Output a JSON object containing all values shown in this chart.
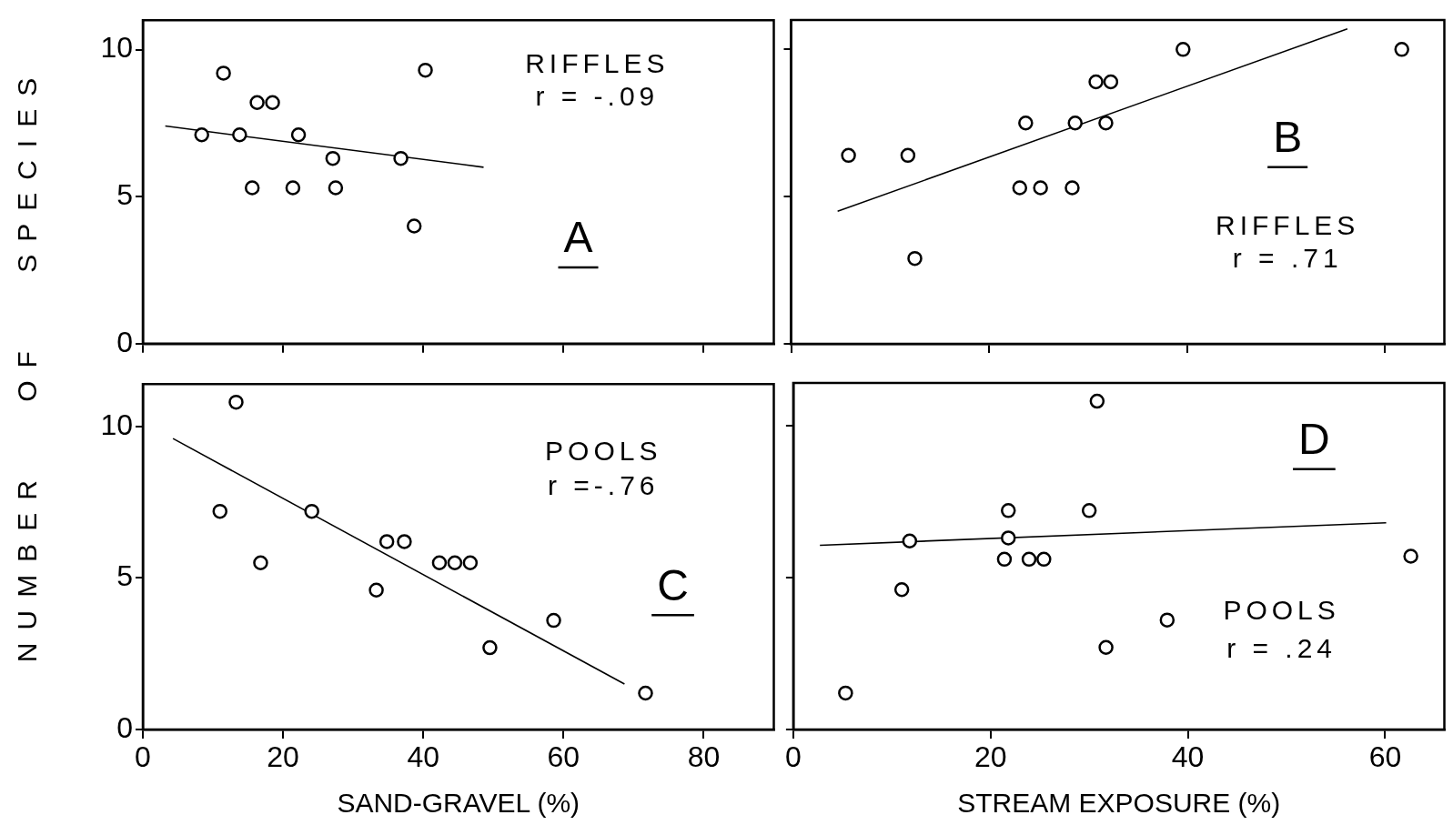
{
  "chart_data": [
    {
      "type": "scatter",
      "ylabel": "NUMBER OF SPECIES",
      "xlim": [
        0,
        90
      ],
      "xticks": [
        0,
        20,
        40,
        60,
        80
      ],
      "ylim": [
        0,
        11
      ],
      "yticks": [
        0,
        5,
        10
      ],
      "tick_labels": "y",
      "annotations": [
        "A",
        "RIFFLES",
        "r = -.09"
      ],
      "series": [
        {
          "type": "scatter",
          "marker": "circle",
          "color": "#000000",
          "x": [
            11.5,
            40.3,
            16.3,
            18.5,
            8.4,
            13.8,
            22.2,
            27.1,
            36.8,
            15.6,
            21.4,
            27.5,
            38.7
          ],
          "values": [
            9.2,
            9.3,
            8.2,
            8.2,
            7.1,
            7.1,
            7.1,
            6.3,
            6.3,
            5.3,
            5.3,
            5.3,
            4.0
          ]
        },
        {
          "type": "line",
          "color": "#000000",
          "x": [
            3.2,
            48.6
          ],
          "values": [
            7.4,
            6.0
          ]
        }
      ]
    },
    {
      "type": "scatter",
      "xlim": [
        0,
        66
      ],
      "xticks": [
        0,
        20,
        40,
        60
      ],
      "ylim": [
        0,
        11
      ],
      "yticks": [
        0,
        5,
        10
      ],
      "tick_labels": false,
      "annotations": [
        "B",
        "RIFFLES",
        "r = .71"
      ],
      "series": [
        {
          "type": "scatter",
          "marker": "circle",
          "color": "#000000",
          "x": [
            39.6,
            61.7,
            30.8,
            32.3,
            23.7,
            28.7,
            31.8,
            5.8,
            11.8,
            12.5,
            23.1,
            25.2,
            28.4
          ],
          "values": [
            10.0,
            10.0,
            8.9,
            8.9,
            7.5,
            7.5,
            7.5,
            6.4,
            6.4,
            2.9,
            5.3,
            5.3,
            5.3
          ]
        },
        {
          "type": "line",
          "color": "#000000",
          "x": [
            4.7,
            56.2
          ],
          "values": [
            4.5,
            10.7
          ]
        }
      ]
    },
    {
      "type": "scatter",
      "xlabel": "SAND-GRAVEL (%)",
      "xlim": [
        0,
        90
      ],
      "xticks": [
        0,
        20,
        40,
        60,
        80
      ],
      "ylim": [
        0,
        11.4
      ],
      "yticks": [
        0,
        5,
        10
      ],
      "annotations": [
        "C",
        "POOLS",
        "r =-.76"
      ],
      "series": [
        {
          "type": "scatter",
          "marker": "circle",
          "color": "#000000",
          "x": [
            13.3,
            11.0,
            16.8,
            24.1,
            33.3,
            34.8,
            37.3,
            42.3,
            44.5,
            46.7,
            49.5,
            58.6,
            71.7
          ],
          "values": [
            10.8,
            7.2,
            5.5,
            7.2,
            4.6,
            6.2,
            6.2,
            5.5,
            5.5,
            5.5,
            2.7,
            3.6,
            1.2
          ]
        },
        {
          "type": "line",
          "color": "#000000",
          "x": [
            4.3,
            68.7
          ],
          "values": [
            9.6,
            1.5
          ]
        }
      ]
    },
    {
      "type": "scatter",
      "xlabel": "STREAM EXPOSURE (%)",
      "xlim": [
        0,
        66
      ],
      "xticks": [
        0,
        20,
        40,
        60
      ],
      "ylim": [
        0,
        11.4
      ],
      "yticks": [
        0,
        5,
        10
      ],
      "tick_labels": "x",
      "annotations": [
        "D",
        "POOLS",
        "r = .24"
      ],
      "series": [
        {
          "type": "scatter",
          "marker": "circle",
          "color": "#000000",
          "x": [
            30.8,
            21.8,
            30.0,
            21.8,
            11.8,
            21.4,
            23.9,
            25.4,
            62.6,
            11.0,
            37.9,
            31.7,
            5.3
          ],
          "values": [
            10.8,
            7.2,
            7.2,
            6.3,
            6.2,
            5.6,
            5.6,
            5.6,
            5.7,
            4.6,
            3.6,
            2.7,
            1.2
          ]
        },
        {
          "type": "line",
          "color": "#000000",
          "x": [
            2.7,
            60.1
          ],
          "values": [
            6.06,
            6.8
          ]
        }
      ]
    }
  ]
}
